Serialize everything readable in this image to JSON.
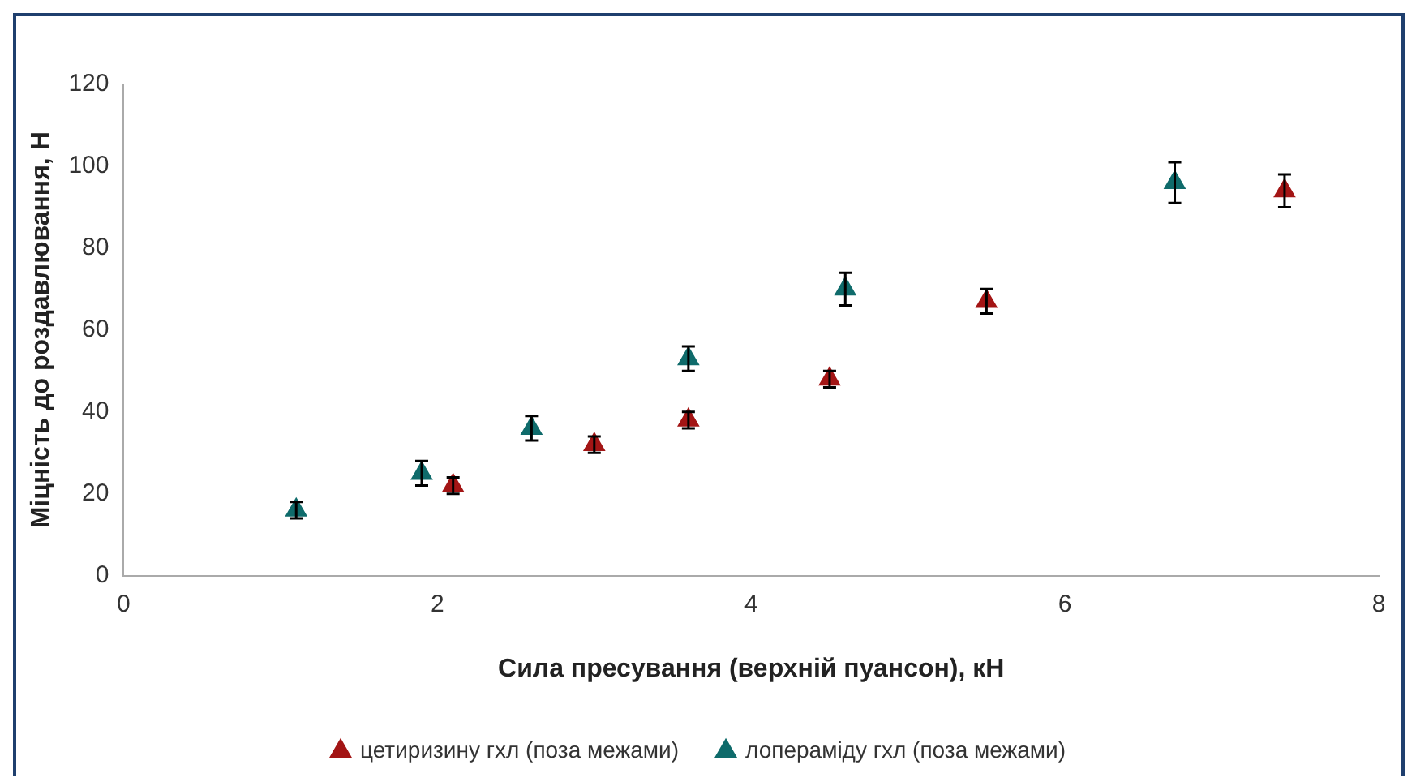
{
  "chart_data": {
    "type": "scatter",
    "xlabel": "Сила пресування (верхній пуансон), кН",
    "ylabel": "Міцність до роздавлювання, Н",
    "xlim": [
      0,
      8
    ],
    "xticks": [
      0,
      2,
      4,
      6,
      8
    ],
    "ylim": [
      0,
      120
    ],
    "yticks": [
      0,
      20,
      40,
      60,
      80,
      100,
      120
    ],
    "grid": false,
    "legend": "bottom",
    "marker": "triangle",
    "series": [
      {
        "name": "цетиризину гхл (поза межами)",
        "color": "#a31515",
        "x": [
          2.1,
          3.0,
          3.6,
          4.5,
          5.5,
          7.4
        ],
        "values": [
          22,
          32,
          38,
          48,
          67,
          94
        ],
        "errors": [
          2,
          2,
          2,
          2,
          3,
          4
        ]
      },
      {
        "name": "лопераміду гхл (поза межами)",
        "color": "#0f6b6b",
        "x": [
          1.1,
          1.9,
          2.6,
          3.6,
          4.6,
          6.7
        ],
        "values": [
          16,
          25,
          36,
          53,
          70,
          96
        ],
        "errors": [
          2,
          3,
          3,
          3,
          4,
          5
        ]
      }
    ]
  }
}
